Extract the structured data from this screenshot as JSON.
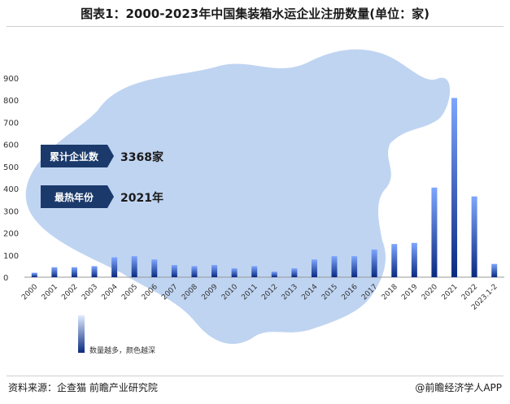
{
  "title": "图表1：2000-2023年中国集装箱水运企业注册数量(单位：家)",
  "stats": [
    {
      "label": "累计企业数",
      "value": "3368家"
    },
    {
      "label": "最热年份",
      "value": "2021年"
    }
  ],
  "legend_note": "数量越多，颜色越深",
  "source": "资料来源：企查猫 前瞻产业研究院",
  "brand": "@前瞻经济学人APP",
  "colors": {
    "bar_dark": "#0a2a80",
    "bar_light": "#7ea6ff",
    "map": "#b8cff0",
    "label_bg": "#1b3a6b"
  },
  "chart_data": {
    "type": "bar",
    "categories": [
      "2000",
      "2001",
      "2002",
      "2003",
      "2004",
      "2005",
      "2006",
      "2007",
      "2008",
      "2009",
      "2010",
      "2011",
      "2012",
      "2013",
      "2014",
      "2015",
      "2016",
      "2017",
      "2018",
      "2019",
      "2020",
      "2021",
      "2022",
      "2023.1-2"
    ],
    "values": [
      20,
      45,
      45,
      50,
      90,
      95,
      80,
      55,
      50,
      55,
      40,
      50,
      25,
      40,
      80,
      95,
      95,
      125,
      150,
      155,
      405,
      810,
      365,
      60
    ],
    "yticks": [
      0,
      100,
      200,
      300,
      400,
      500,
      600,
      700,
      800,
      900
    ],
    "ylim": [
      0,
      900
    ],
    "title": "",
    "xlabel": "",
    "ylabel": "",
    "grid": false
  }
}
